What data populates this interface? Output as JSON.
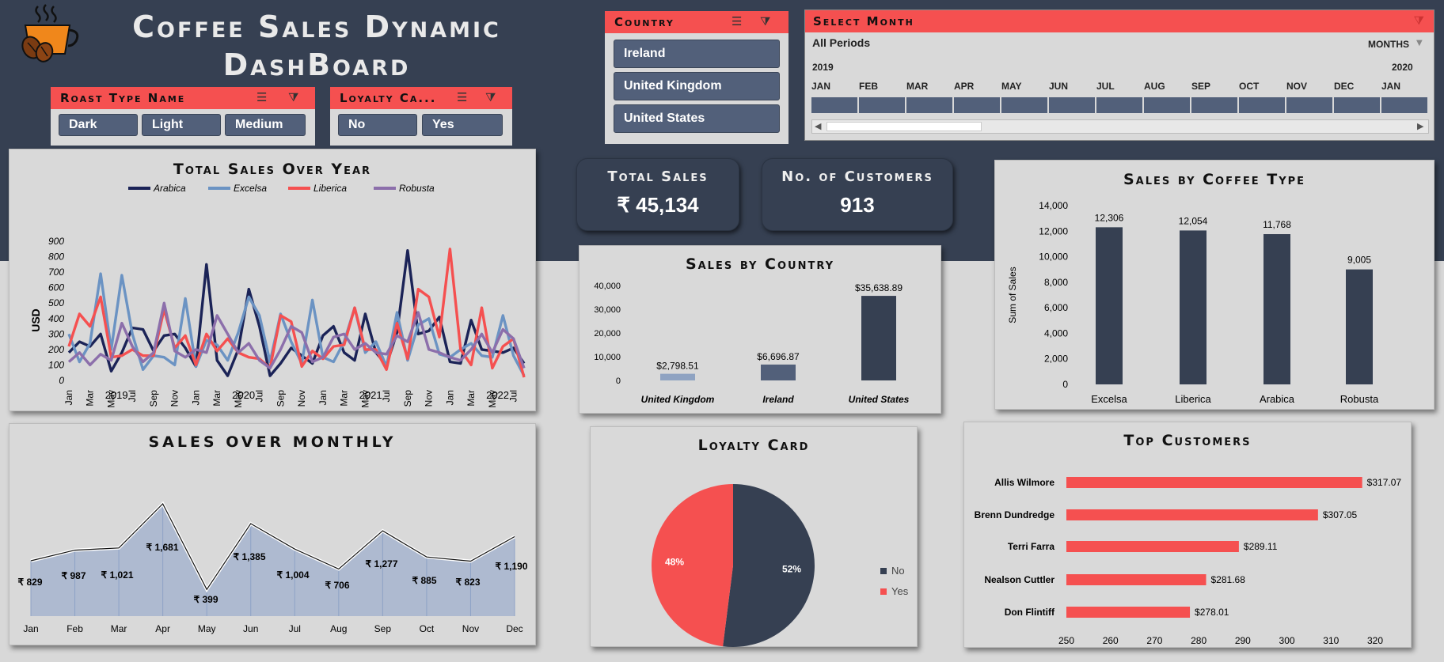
{
  "header": {
    "title": "Coffee Sales Dynamic DashBoard",
    "title_line1": "Coffee Sales Dynamic",
    "title_line2": "DashBoard",
    "logo_icon": "coffee-cup-icon"
  },
  "slicers": {
    "roast": {
      "title": "Roast Type Name",
      "items": [
        "Dark",
        "Light",
        "Medium"
      ]
    },
    "loyalty": {
      "title": "Loyalty Ca...",
      "items": [
        "No",
        "Yes"
      ]
    },
    "country": {
      "title": "Country",
      "items": [
        "Ireland",
        "United Kingdom",
        "United States"
      ]
    }
  },
  "timeline": {
    "title": "Select Month",
    "periods_label": "All Periods",
    "unit_label": "MONTHS",
    "year_start": "2019",
    "year_end": "2020",
    "months": [
      "JAN",
      "FEB",
      "MAR",
      "APR",
      "MAY",
      "JUN",
      "JUL",
      "AUG",
      "SEP",
      "OCT",
      "NOV",
      "DEC",
      "JAN"
    ]
  },
  "kpis": {
    "total_sales": {
      "label": "Total Sales",
      "value": "₹ 45,134"
    },
    "customers": {
      "label": "No. of Customers",
      "value": "913"
    }
  },
  "colors": {
    "navy": "#364052",
    "accent_red": "#f55050",
    "arabica": "#1b2357",
    "excelsa": "#6b93c3",
    "liberica": "#f55050",
    "robusta": "#8c6fab"
  },
  "chart_data": [
    {
      "type": "line",
      "title": "Total Sales Over Year",
      "ylabel": "USD",
      "ylim": [
        0,
        900
      ],
      "yticks": [
        "0",
        "100",
        "200",
        "300",
        "400",
        "500",
        "600",
        "700",
        "800",
        "900"
      ],
      "xticks": [
        "Jan",
        "Mar",
        "May",
        "Jul",
        "Sep",
        "Nov",
        "Jan",
        "Mar",
        "May",
        "Jul",
        "Sep",
        "Nov",
        "Jan",
        "Mar",
        "May",
        "Jul",
        "Sep",
        "Nov",
        "Jan",
        "Mar",
        "May",
        "Jul"
      ],
      "years": [
        "2019",
        "2020",
        "2021",
        "2022"
      ],
      "legend": "top",
      "series": [
        {
          "name": "Arabica",
          "color": "#1b2357",
          "values": [
            180,
            250,
            220,
            300,
            60,
            180,
            340,
            330,
            190,
            290,
            300,
            210,
            90,
            750,
            130,
            30,
            200,
            590,
            350,
            30,
            110,
            210,
            160,
            110,
            290,
            350,
            180,
            130,
            430,
            180,
            100,
            310,
            840,
            300,
            320,
            410,
            120,
            110,
            390,
            200,
            190,
            180,
            210,
            110
          ]
        },
        {
          "name": "Excelsa",
          "color": "#6b93c3",
          "values": [
            300,
            120,
            240,
            690,
            200,
            680,
            300,
            70,
            160,
            150,
            100,
            530,
            90,
            260,
            230,
            130,
            310,
            540,
            420,
            120,
            430,
            250,
            110,
            520,
            150,
            120,
            250,
            470,
            180,
            250,
            90,
            440,
            130,
            360,
            400,
            170,
            150,
            200,
            240,
            160,
            150,
            420,
            160,
            30
          ]
        },
        {
          "name": "Liberica",
          "color": "#f55050",
          "values": [
            220,
            430,
            350,
            540,
            150,
            160,
            200,
            160,
            160,
            460,
            210,
            290,
            100,
            300,
            190,
            270,
            180,
            150,
            140,
            80,
            420,
            380,
            90,
            190,
            140,
            220,
            230,
            470,
            200,
            200,
            70,
            370,
            140,
            590,
            540,
            280,
            850,
            200,
            100,
            470,
            80,
            220,
            270,
            20
          ]
        },
        {
          "name": "Robusta",
          "color": "#8c6fab",
          "values": [
            120,
            180,
            100,
            170,
            130,
            370,
            220,
            120,
            180,
            500,
            190,
            150,
            200,
            180,
            420,
            300,
            180,
            240,
            130,
            80,
            200,
            350,
            310,
            120,
            150,
            280,
            300,
            200,
            240,
            180,
            170,
            290,
            250,
            440,
            200,
            180,
            150,
            130,
            200,
            300,
            180,
            330,
            270,
            80
          ]
        }
      ]
    },
    {
      "type": "bar",
      "title": "Sales by Country",
      "categories": [
        "United Kingdom",
        "Ireland",
        "United States"
      ],
      "values": [
        2798.51,
        6696.87,
        35638.89
      ],
      "labels": [
        "$2,798.51",
        "$6,696.87",
        "$35,638.89"
      ],
      "colors": [
        "#8fa3c2",
        "#52607a",
        "#364052"
      ],
      "ylim": [
        0,
        40000
      ],
      "yticks": [
        "0",
        "10,000",
        "20,000",
        "30,000",
        "40,000"
      ]
    },
    {
      "type": "bar",
      "title": "Sales by Coffee Type",
      "categories": [
        "Excelsa",
        "Liberica",
        "Arabica",
        "Robusta"
      ],
      "values": [
        12306,
        12054,
        11768,
        9005
      ],
      "labels": [
        "12,306",
        "12,054",
        "11,768",
        "9,005"
      ],
      "ylabel": "Sum of Sales",
      "ylim": [
        0,
        14000
      ],
      "yticks": [
        "0",
        "2,000",
        "4,000",
        "6,000",
        "8,000",
        "10,000",
        "12,000",
        "14,000"
      ]
    },
    {
      "type": "area",
      "title": "SALES OVER MONTHLY",
      "categories": [
        "Jan",
        "Feb",
        "Mar",
        "Apr",
        "May",
        "Jun",
        "Jul",
        "Aug",
        "Sep",
        "Oct",
        "Nov",
        "Dec"
      ],
      "values": [
        829,
        987,
        1021,
        1681,
        399,
        1385,
        1004,
        706,
        1277,
        885,
        823,
        1190
      ],
      "labels": [
        "₹ 829",
        "₹ 987",
        "₹ 1,021",
        "₹ 1,681",
        "₹ 399",
        "₹ 1,385",
        "₹ 1,004",
        "₹ 706",
        "₹ 1,277",
        "₹ 885",
        "₹ 823",
        "₹ 1,190"
      ]
    },
    {
      "type": "pie",
      "title": "Loyalty Card",
      "categories": [
        "No",
        "Yes"
      ],
      "values": [
        52,
        48
      ],
      "labels": [
        "52%",
        "48%"
      ],
      "colors": [
        "#364052",
        "#f55050"
      ],
      "legend": "right"
    },
    {
      "type": "bar",
      "title": "Top Customers",
      "orientation": "horizontal",
      "categories": [
        "Allis Wilmore",
        "Brenn Dundredge",
        "Terri Farra",
        "Nealson Cuttler",
        "Don Flintiff"
      ],
      "values": [
        317.07,
        307.05,
        289.11,
        281.68,
        278.01
      ],
      "labels": [
        "$317.07",
        "$307.05",
        "$289.11",
        "$281.68",
        "$278.01"
      ],
      "xlim": [
        250,
        320
      ],
      "xticks": [
        "250",
        "260",
        "270",
        "280",
        "290",
        "300",
        "310",
        "320"
      ]
    }
  ]
}
